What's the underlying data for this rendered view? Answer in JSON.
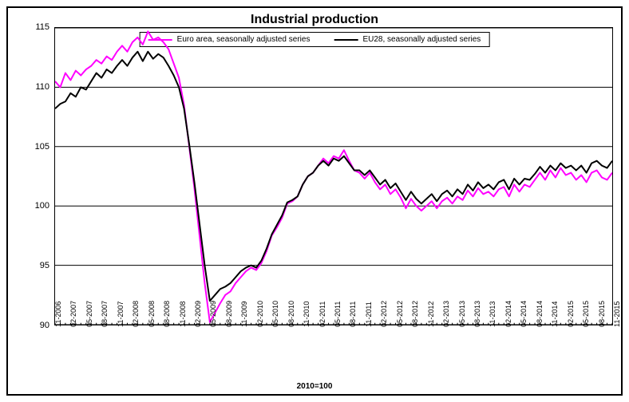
{
  "chart": {
    "type": "line",
    "title": "Industrial production",
    "title_fontsize": 16,
    "xaxis_title": "2010=100",
    "background_color": "#ffffff",
    "grid_color": "#000000",
    "border_color": "#000000",
    "ylim": [
      90,
      115
    ],
    "yticks": [
      90,
      95,
      100,
      105,
      110,
      115
    ],
    "tick_fontsize": 10,
    "line_width": 2,
    "categories": [
      "11-2006",
      "02-2007",
      "05-2007",
      "08-2007",
      "11-2007",
      "02-2008",
      "05-2008",
      "08-2008",
      "11-2008",
      "02-2009",
      "05-2009",
      "08-2009",
      "11-2009",
      "02-2010",
      "05-2010",
      "08-2010",
      "11-2010",
      "02-2011",
      "05-2011",
      "08-2011",
      "11-2011",
      "02-2012",
      "05-2012",
      "08-2012",
      "11-2012",
      "02-2013",
      "05-2013",
      "08-2013",
      "11-2013",
      "02-2014",
      "05-2014",
      "08-2014",
      "11-2014",
      "02-2015",
      "05-2015",
      "08-2015",
      "11-2015"
    ],
    "n_points": 109,
    "legend": {
      "position": "top-center",
      "items": [
        {
          "label": "Euro area, seasonally adjusted series",
          "color": "#ff00ff"
        },
        {
          "label": "EU28, seasonally adjusted series",
          "color": "#000000"
        }
      ]
    },
    "series": [
      {
        "name": "euro_area",
        "color": "#ff00ff",
        "values": [
          110.5,
          110.0,
          111.2,
          110.6,
          111.4,
          111.0,
          111.5,
          111.8,
          112.3,
          112.0,
          112.6,
          112.3,
          113.0,
          113.5,
          113.0,
          113.8,
          114.2,
          113.6,
          114.7,
          114.0,
          114.2,
          113.8,
          113.2,
          112.0,
          110.8,
          108.5,
          105.0,
          101.5,
          97.5,
          93.5,
          90.2,
          91.0,
          91.8,
          92.5,
          92.8,
          93.5,
          94.0,
          94.5,
          94.8,
          94.6,
          95.2,
          96.2,
          97.5,
          98.2,
          99.0,
          100.2,
          100.4,
          100.8,
          101.8,
          102.5,
          102.8,
          103.4,
          104.0,
          103.6,
          104.2,
          104.0,
          104.7,
          103.8,
          103.0,
          102.8,
          102.3,
          102.8,
          102.0,
          101.4,
          101.8,
          101.0,
          101.4,
          100.7,
          99.8,
          100.6,
          100.0,
          99.6,
          100.0,
          100.4,
          99.8,
          100.4,
          100.7,
          100.2,
          100.8,
          100.5,
          101.3,
          100.8,
          101.5,
          101.0,
          101.2,
          100.8,
          101.4,
          101.6,
          100.8,
          101.8,
          101.2,
          101.8,
          101.6,
          102.2,
          102.8,
          102.2,
          103.0,
          102.4,
          103.2,
          102.6,
          102.8,
          102.2,
          102.6,
          102.0,
          102.8,
          103.0,
          102.4,
          102.2,
          102.8
        ]
      },
      {
        "name": "eu28",
        "color": "#000000",
        "values": [
          108.2,
          108.6,
          108.8,
          109.5,
          109.2,
          110.0,
          109.8,
          110.5,
          111.2,
          110.8,
          111.5,
          111.2,
          111.8,
          112.3,
          111.8,
          112.5,
          113.0,
          112.2,
          113.0,
          112.4,
          112.8,
          112.5,
          111.8,
          111.0,
          110.0,
          108.2,
          105.2,
          102.0,
          98.5,
          95.0,
          92.0,
          92.5,
          93.0,
          93.2,
          93.5,
          94.0,
          94.5,
          94.8,
          95.0,
          94.8,
          95.4,
          96.4,
          97.6,
          98.4,
          99.2,
          100.3,
          100.5,
          100.8,
          101.8,
          102.5,
          102.8,
          103.4,
          103.8,
          103.4,
          104.0,
          103.8,
          104.2,
          103.6,
          103.0,
          103.0,
          102.6,
          103.0,
          102.4,
          101.8,
          102.2,
          101.5,
          101.9,
          101.2,
          100.5,
          101.2,
          100.6,
          100.2,
          100.6,
          101.0,
          100.4,
          101.0,
          101.3,
          100.8,
          101.4,
          101.0,
          101.8,
          101.3,
          102.0,
          101.5,
          101.8,
          101.4,
          102.0,
          102.2,
          101.4,
          102.3,
          101.8,
          102.3,
          102.2,
          102.7,
          103.3,
          102.8,
          103.4,
          103.0,
          103.6,
          103.2,
          103.4,
          103.0,
          103.4,
          102.8,
          103.6,
          103.8,
          103.4,
          103.2,
          103.8
        ]
      }
    ]
  }
}
